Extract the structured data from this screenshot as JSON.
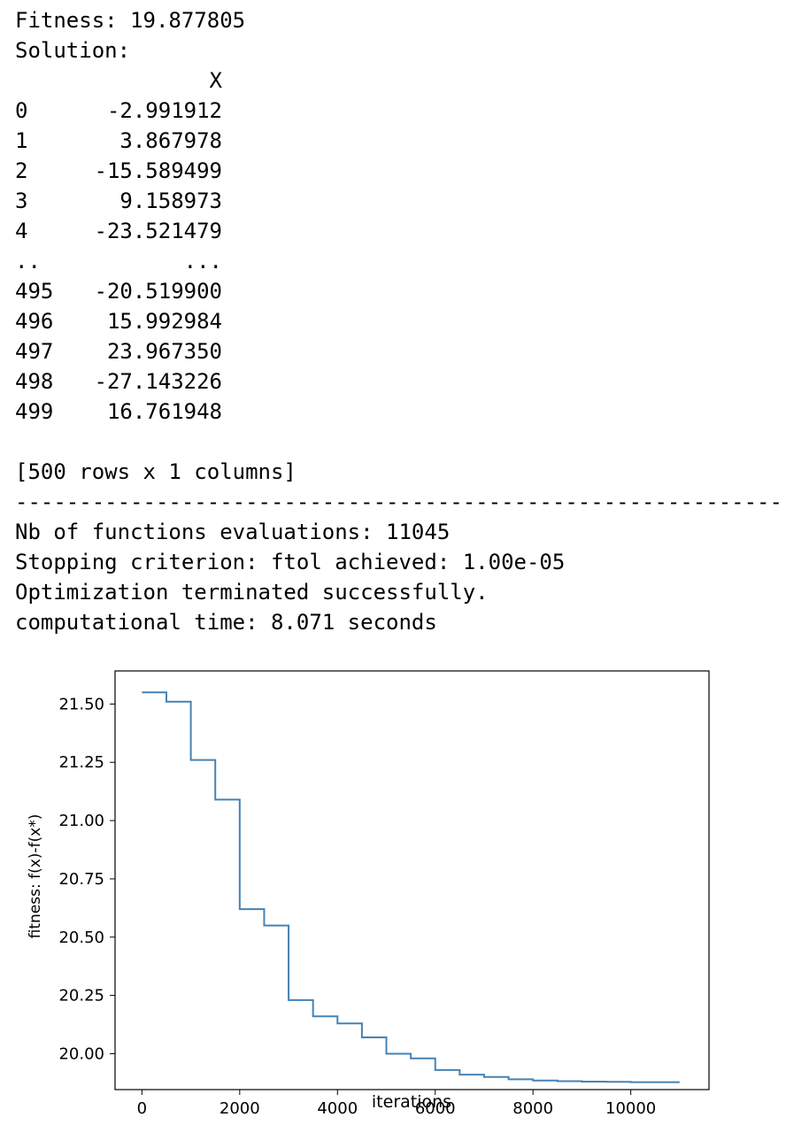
{
  "output": {
    "fitness_line": "Fitness: 19.877805",
    "solution_label": "Solution:",
    "column_header": "X",
    "rows": [
      {
        "index": "0",
        "value": "-2.991912"
      },
      {
        "index": "1",
        "value": "3.867978"
      },
      {
        "index": "2",
        "value": "-15.589499"
      },
      {
        "index": "3",
        "value": "9.158973"
      },
      {
        "index": "4",
        "value": "-23.521479"
      },
      {
        "index": "..",
        "value": "..."
      },
      {
        "index": "495",
        "value": "-20.519900"
      },
      {
        "index": "496",
        "value": "15.992984"
      },
      {
        "index": "497",
        "value": "23.967350"
      },
      {
        "index": "498",
        "value": "-27.143226"
      },
      {
        "index": "499",
        "value": "16.761948"
      }
    ],
    "shape_line": "[500 rows x 1 columns]",
    "separator": "------------------------------------------------------------",
    "nb_evaluations_line": "Nb of functions evaluations: 11045",
    "stopping_line": "Stopping criterion: ftol achieved: 1.00e-05",
    "terminated_line": "Optimization terminated successfully.",
    "time_line": "computational time: 8.071 seconds"
  },
  "chart_data": {
    "type": "line",
    "title": "",
    "xlabel": "iterations",
    "ylabel": "fitness: f(x)-f(x*)",
    "xlim": [
      -550,
      11600
    ],
    "ylim": [
      19.846,
      21.642
    ],
    "x_ticks": [
      0,
      2000,
      4000,
      6000,
      8000,
      10000
    ],
    "y_ticks": [
      20.0,
      20.25,
      20.5,
      20.75,
      21.0,
      21.25,
      21.5
    ],
    "y_tick_labels": [
      "20.00",
      "20.25",
      "20.50",
      "20.75",
      "21.00",
      "21.25",
      "21.50"
    ],
    "step": "post",
    "grid": false,
    "legend": "none",
    "color": "#4682b4",
    "series": [
      {
        "x": [
          0,
          500,
          1000,
          1500,
          2000,
          2500,
          3000,
          3500,
          4000,
          4500,
          5000,
          5500,
          6000,
          6500,
          7000,
          7500,
          8000,
          8500,
          9000,
          9500,
          10000,
          10500,
          11000
        ],
        "y": [
          21.55,
          21.51,
          21.26,
          21.09,
          20.62,
          20.55,
          20.23,
          20.16,
          20.13,
          20.07,
          20.0,
          19.98,
          19.93,
          19.91,
          19.9,
          19.89,
          19.885,
          19.882,
          19.88,
          19.879,
          19.878,
          19.878,
          19.878
        ]
      }
    ]
  }
}
